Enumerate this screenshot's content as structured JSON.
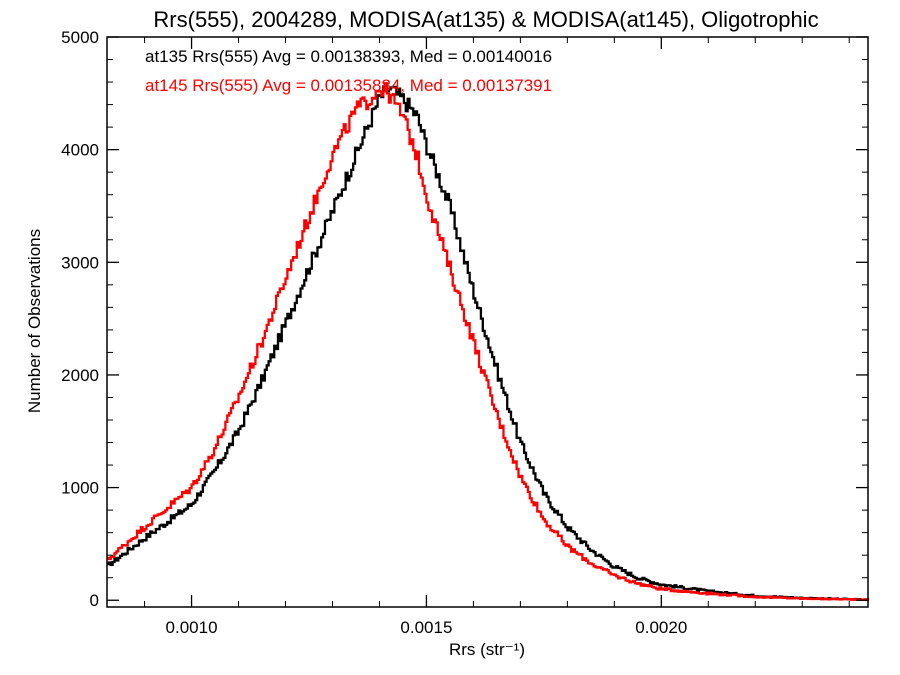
{
  "chart_data": {
    "type": "line",
    "title": "Rrs(555), 2004289, MODISA(at135) & MODISA(at145), Oligotrophic",
    "xlabel": "Rrs (str⁻¹)",
    "ylabel": "Number of Observations",
    "xlim": [
      0.00082,
      0.00244
    ],
    "ylim": [
      0,
      5000
    ],
    "x_ticks": [
      0.001,
      0.0015,
      0.002
    ],
    "x_tick_labels": [
      "0.0010",
      "0.0015",
      "0.0020"
    ],
    "y_ticks": [
      0,
      1000,
      2000,
      3000,
      4000,
      5000
    ],
    "y_tick_labels": [
      "0",
      "1000",
      "2000",
      "3000",
      "4000",
      "5000"
    ],
    "grid": false,
    "legend": "top-left",
    "annotations": [
      {
        "text": "at135 Rrs(555) Avg = 0.00138393, Med = 0.00140016",
        "color": "#000000"
      },
      {
        "text": "at145 Rrs(555) Avg = 0.00135884, Med = 0.00137391",
        "color": "#ff0000"
      }
    ],
    "series": [
      {
        "name": "at135",
        "color": "#000000",
        "x": [
          0.00082,
          0.0009,
          0.001,
          0.00105,
          0.0011,
          0.00115,
          0.0012,
          0.00125,
          0.0013,
          0.00135,
          0.00138,
          0.0014,
          0.00142,
          0.00145,
          0.00148,
          0.0015,
          0.00155,
          0.0016,
          0.00165,
          0.0017,
          0.00175,
          0.0018,
          0.00185,
          0.0019,
          0.00195,
          0.002,
          0.0021,
          0.0022,
          0.0023,
          0.00244
        ],
        "y": [
          300,
          550,
          850,
          1150,
          1500,
          1950,
          2450,
          2950,
          3450,
          3950,
          4250,
          4450,
          4550,
          4450,
          4300,
          4050,
          3500,
          2750,
          2050,
          1400,
          950,
          650,
          450,
          300,
          200,
          140,
          80,
          40,
          20,
          5
        ]
      },
      {
        "name": "at145",
        "color": "#ff0000",
        "x": [
          0.00082,
          0.0009,
          0.001,
          0.00105,
          0.0011,
          0.00115,
          0.0012,
          0.00125,
          0.0013,
          0.00135,
          0.00138,
          0.0014,
          0.00142,
          0.00145,
          0.00148,
          0.0015,
          0.00155,
          0.0016,
          0.00165,
          0.0017,
          0.00175,
          0.0018,
          0.00185,
          0.0019,
          0.00195,
          0.002,
          0.0021,
          0.0022,
          0.0023,
          0.00244
        ],
        "y": [
          350,
          650,
          1000,
          1350,
          1800,
          2300,
          2850,
          3400,
          3950,
          4350,
          4450,
          4550,
          4500,
          4300,
          3950,
          3600,
          2950,
          2300,
          1650,
          1100,
          720,
          480,
          330,
          220,
          150,
          100,
          60,
          30,
          15,
          5
        ]
      }
    ]
  }
}
